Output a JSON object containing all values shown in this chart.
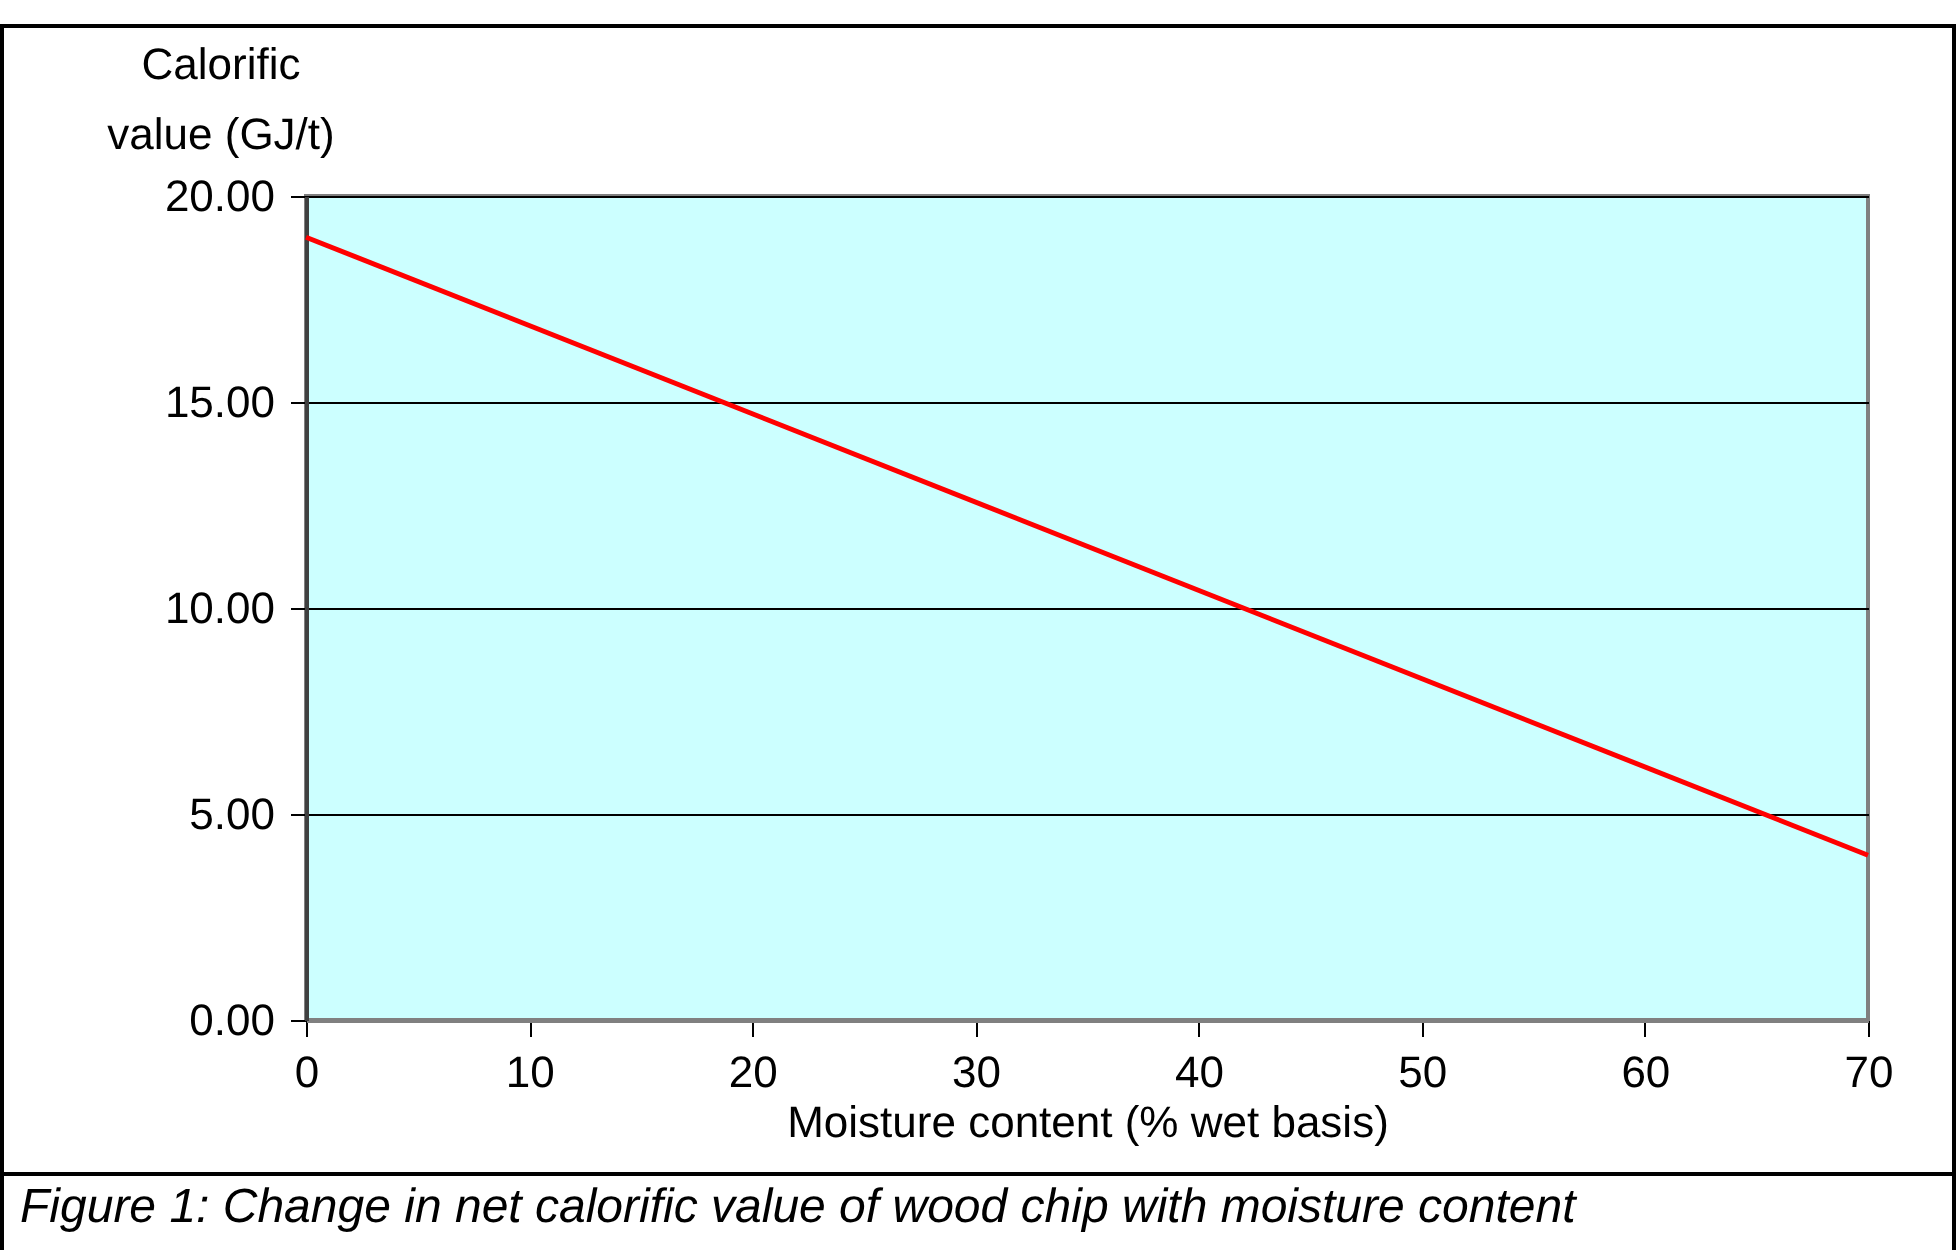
{
  "chart_data": {
    "type": "line",
    "xlabel": "Moisture content (% wet basis)",
    "ylabel": "Calorific value (GJ/t)",
    "x": [
      0,
      70
    ],
    "series": [
      {
        "color": "#ff0000",
        "values": [
          19,
          4
        ]
      }
    ],
    "xlim": [
      0,
      70
    ],
    "xticks": [
      0,
      10,
      20,
      30,
      40,
      50,
      60,
      70
    ],
    "ylim": [
      0,
      20
    ],
    "yticks": [
      {
        "value": 0,
        "label": "0.00"
      },
      {
        "value": 5,
        "label": "5.00"
      },
      {
        "value": 10,
        "label": "10.00"
      },
      {
        "value": 15,
        "label": "15.00"
      },
      {
        "value": 20,
        "label": "20.00"
      }
    ],
    "grid": "y",
    "legend": false,
    "marker": "none",
    "line_style": "solid",
    "annotations": [
      "Figure 1:  Change in net calorific value of wood chip with moisture content"
    ]
  }
}
